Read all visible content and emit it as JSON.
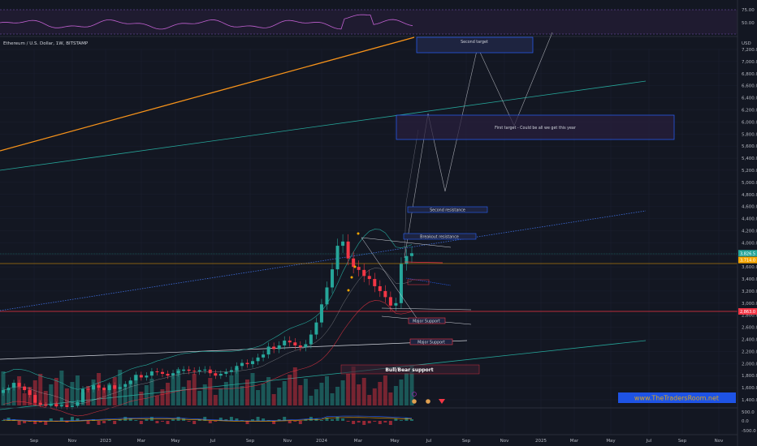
{
  "header": {
    "symbol_title": "Ethereum / U.S. Dollar, 1W, BITSTAMP",
    "currency": "USD"
  },
  "watermark": "www.TheTradersRoom.net",
  "chart_data": {
    "type": "candlestick",
    "title": "Ethereum / U.S. Dollar, 1W, BITSTAMP",
    "ylabel": "USD",
    "y_ticks": [
      "1,400.0",
      "1,600.0",
      "1,800.0",
      "2,000.0",
      "2,200.0",
      "2,400.0",
      "2,600.0",
      "2,800.0",
      "3,000.0",
      "3,200.0",
      "3,400.0",
      "3,600.0",
      "3,800.0",
      "4,000.0",
      "4,200.0",
      "4,400.0",
      "4,600.0",
      "4,800.0",
      "5,000.0",
      "5,200.0",
      "5,400.0",
      "5,600.0",
      "5,800.0",
      "6,000.0",
      "6,200.0",
      "6,400.0",
      "6,600.0",
      "6,800.0",
      "7,000.0",
      "7,200.0"
    ],
    "x_ticks": [
      "Sep",
      "Nov",
      "2023",
      "Mar",
      "May",
      "Jul",
      "Sep",
      "Nov",
      "2024",
      "Mar",
      "May",
      "Jul",
      "Sep",
      "Nov",
      "2025",
      "Mar",
      "May",
      "Jul",
      "Sep",
      "Nov"
    ],
    "rsi_ticks": [
      "75.00",
      "50.00"
    ],
    "macd_ticks": [
      "500.0",
      "0.0",
      "-500.0"
    ],
    "price_tags": [
      {
        "label": "3,826.5",
        "price": 3826.5,
        "color": "#26a69a"
      },
      {
        "label": "3,714.0",
        "price": 3714.0,
        "color": "#f7a600"
      },
      {
        "label": "2,863.0",
        "price": 2863.0,
        "color": "#f23645"
      }
    ],
    "annotations": [
      {
        "label": "Second target",
        "price": 7150
      },
      {
        "label": "First target - Could be all we get this year",
        "price": 5950
      },
      {
        "label": "Second resistance",
        "price": 4555
      },
      {
        "label": "Breakout resistance",
        "price": 4120
      },
      {
        "label": "Major Support",
        "price": 2735
      },
      {
        "label": "Major Support",
        "price": 2333
      },
      {
        "label": "Bull/Bear support",
        "price": 1920
      }
    ],
    "weekly_closes": [
      1560,
      1600,
      1680,
      1620,
      1560,
      1480,
      1350,
      1320,
      1300,
      1330,
      1290,
      1310,
      1280,
      1300,
      1360,
      1580,
      1570,
      1640,
      1600,
      1560,
      1640,
      1580,
      1610,
      1660,
      1720,
      1810,
      1770,
      1800,
      1870,
      1860,
      1830,
      1800,
      1840,
      1880,
      1900,
      1880,
      1870,
      1890,
      1900,
      1840,
      1800,
      1830,
      1860,
      1890,
      1960,
      2010,
      1990,
      2040,
      2100,
      2150,
      2280,
      2240,
      2300,
      2380,
      2350,
      2300,
      2270,
      2320,
      2480,
      2680,
      2980,
      3260,
      3560,
      3950,
      4020,
      3740,
      3600,
      3550,
      3450,
      3400,
      3280,
      3200,
      3100,
      2960,
      3000,
      3650,
      3780,
      3826.5
    ]
  }
}
